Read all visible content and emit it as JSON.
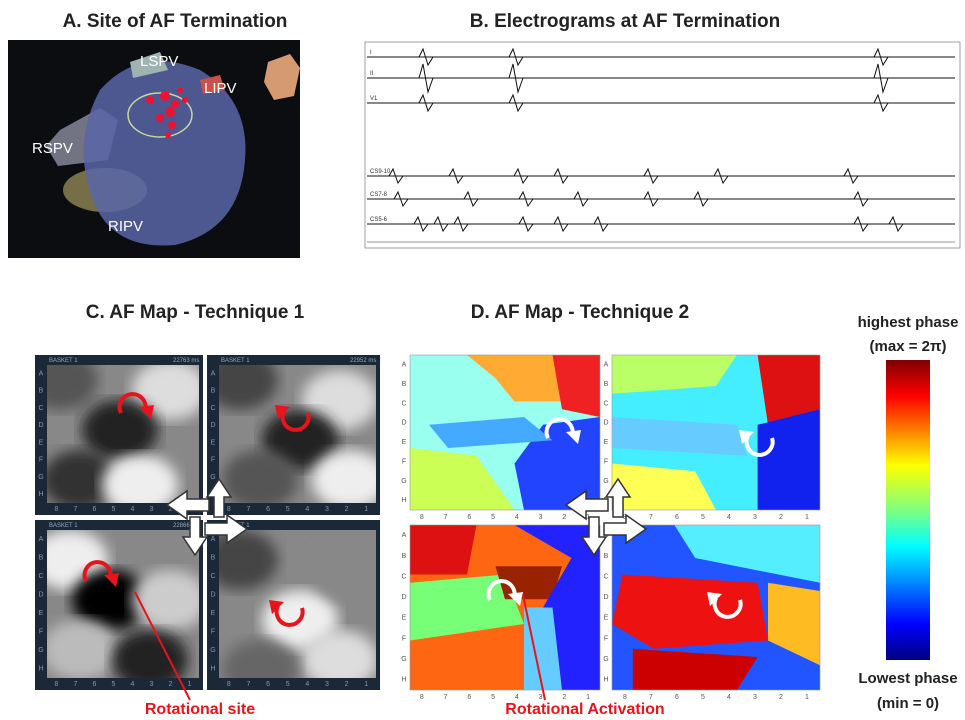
{
  "panels": [
    {
      "title": "A. Site of AF Termination",
      "labels": [
        "LSPV",
        "LIPV",
        "RSPV",
        "RIPV"
      ]
    },
    {
      "title": "B. Electrograms at AF Termination",
      "channels": [
        "I",
        "II",
        "V1",
        "CS9-10",
        "CS7-8",
        "CS5-6"
      ]
    },
    {
      "title": "C. AF Map - Technique 1",
      "headers": [
        "BASKET 1",
        "22763 ms",
        "22952 ms",
        "22866 ms"
      ],
      "annotation": "Rotational site"
    },
    {
      "title": "D. AF Map - Technique 2",
      "annotation": "Rotational Activation"
    }
  ],
  "grid_rows": [
    "A",
    "B",
    "C",
    "D",
    "E",
    "F",
    "G",
    "H"
  ],
  "grid_cols": [
    "8",
    "7",
    "6",
    "5",
    "4",
    "3",
    "2",
    "1"
  ],
  "colorbar": {
    "top": "highest phase",
    "top_note": "(max = 2π)",
    "bottom": "Lowest phase",
    "bottom_note": "(min = 0)"
  }
}
